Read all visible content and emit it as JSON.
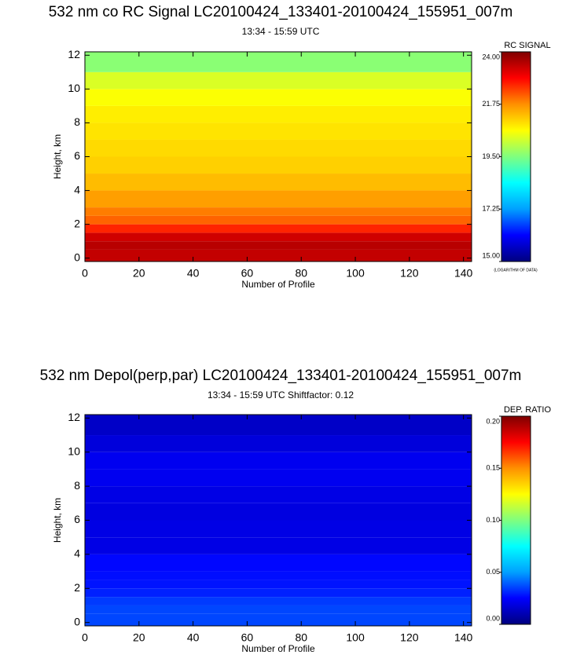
{
  "chart_data": [
    {
      "type": "heatmap",
      "title": "532 nm co RC Signal LC20100424_133401-20100424_155951_007m",
      "subtitle": "13:34 - 15:59 UTC",
      "x_label": "Number of Profile",
      "y_label": "Height, km",
      "colorbar_title": "RC SIGNAL",
      "colorbar_note": "(LOGARITHM OF DATA)",
      "xlim": [
        0,
        143
      ],
      "xticks": [
        0,
        20,
        40,
        60,
        80,
        100,
        120,
        140
      ],
      "ylim": [
        -0.2,
        12.2
      ],
      "yticks": [
        0,
        2,
        4,
        6,
        8,
        10,
        12
      ],
      "height_bins": [
        -0.2,
        0.5,
        1,
        1.5,
        2,
        2.5,
        3,
        4,
        5,
        6,
        7,
        8,
        9,
        10,
        11,
        12.2
      ],
      "values": [
        23.4,
        23.5,
        23.3,
        22.6,
        22.1,
        21.9,
        21.6,
        21.3,
        21.1,
        21.0,
        20.9,
        20.8,
        20.6,
        20.3,
        19.6
      ],
      "clim": [
        15,
        24
      ],
      "cticks": [
        {
          "value": 15,
          "label": "15.00"
        },
        {
          "value": 17.25,
          "label": "17.25"
        },
        {
          "value": 19.5,
          "label": "19.50"
        },
        {
          "value": 21.75,
          "label": "21.75"
        },
        {
          "value": 24,
          "label": "24.00"
        }
      ],
      "colormap": [
        "#00007f",
        "#0000ff",
        "#00a0ff",
        "#00ffff",
        "#7fff7f",
        "#ffff00",
        "#ff9000",
        "#ff0000",
        "#7f0000"
      ]
    },
    {
      "type": "heatmap",
      "title": "532 nm Depol(perp,par) LC20100424_133401-20100424_155951_007m",
      "subtitle": "13:34 - 15:59 UTC Shiftfactor: 0.12",
      "x_label": "Number of Profile",
      "y_label": "Height, km",
      "colorbar_title": "DEP. RATIO",
      "xlim": [
        0,
        143
      ],
      "xticks": [
        0,
        20,
        40,
        60,
        80,
        100,
        120,
        140
      ],
      "ylim": [
        -0.2,
        12.2
      ],
      "yticks": [
        0,
        2,
        4,
        6,
        8,
        10,
        12
      ],
      "height_bins": [
        -0.2,
        0.5,
        1,
        1.5,
        2,
        2.5,
        3,
        4,
        5,
        6,
        7,
        8,
        9,
        10,
        11,
        12.2
      ],
      "values": [
        0.036,
        0.036,
        0.034,
        0.03,
        0.028,
        0.027,
        0.026,
        0.02,
        0.02,
        0.019,
        0.02,
        0.022,
        0.022,
        0.018,
        0.014
      ],
      "clim": [
        0,
        0.2
      ],
      "cticks": [
        {
          "value": 0,
          "label": "0.00"
        },
        {
          "value": 0.05,
          "label": "0.05"
        },
        {
          "value": 0.1,
          "label": "0.10"
        },
        {
          "value": 0.15,
          "label": "0.15"
        },
        {
          "value": 0.2,
          "label": "0.20"
        }
      ],
      "colormap": [
        "#00007f",
        "#0000ff",
        "#00a0ff",
        "#00ffff",
        "#7fff7f",
        "#ffff00",
        "#ff9000",
        "#ff0000",
        "#7f0000"
      ]
    }
  ]
}
